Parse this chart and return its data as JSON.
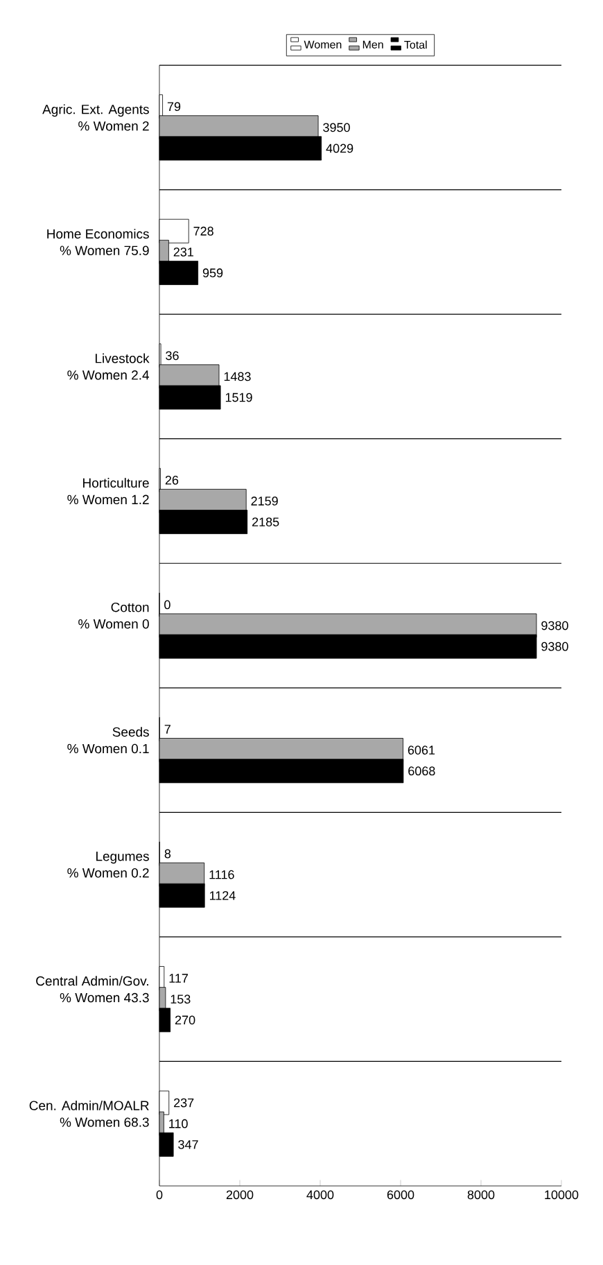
{
  "chart_data": {
    "type": "bar",
    "orientation": "horizontal",
    "categories": [
      "Agric. Ext. Agents",
      "Home Economics",
      "Livestock",
      "Horticulture",
      "Cotton",
      "Seeds",
      "Legumes",
      "Central Admin/Gov.",
      "Cen. Admin/MOALR"
    ],
    "annotations": [
      "% Women 2",
      "% Women 75.9",
      "% Women 2.4",
      "% Women 1.2",
      "% Women 0",
      "% Women 0.1",
      "% Women 0.2",
      "% Women 43.3",
      "% Women 68.3"
    ],
    "series": [
      {
        "name": "Women",
        "color": "#ffffff",
        "values": [
          79,
          728,
          36,
          26,
          0,
          7,
          8,
          117,
          237
        ]
      },
      {
        "name": "Men",
        "color": "#a8a8a8",
        "values": [
          3950,
          231,
          1483,
          2159,
          9380,
          6061,
          1116,
          153,
          110
        ]
      },
      {
        "name": "Total",
        "color": "#000000",
        "values": [
          4029,
          959,
          1519,
          2185,
          9380,
          6068,
          1124,
          270,
          347
        ]
      }
    ],
    "xlim": [
      0,
      10000
    ],
    "xticks": [
      0,
      2000,
      4000,
      6000,
      8000,
      10000
    ],
    "grid": "y",
    "legend": "top",
    "data_labels": true
  }
}
